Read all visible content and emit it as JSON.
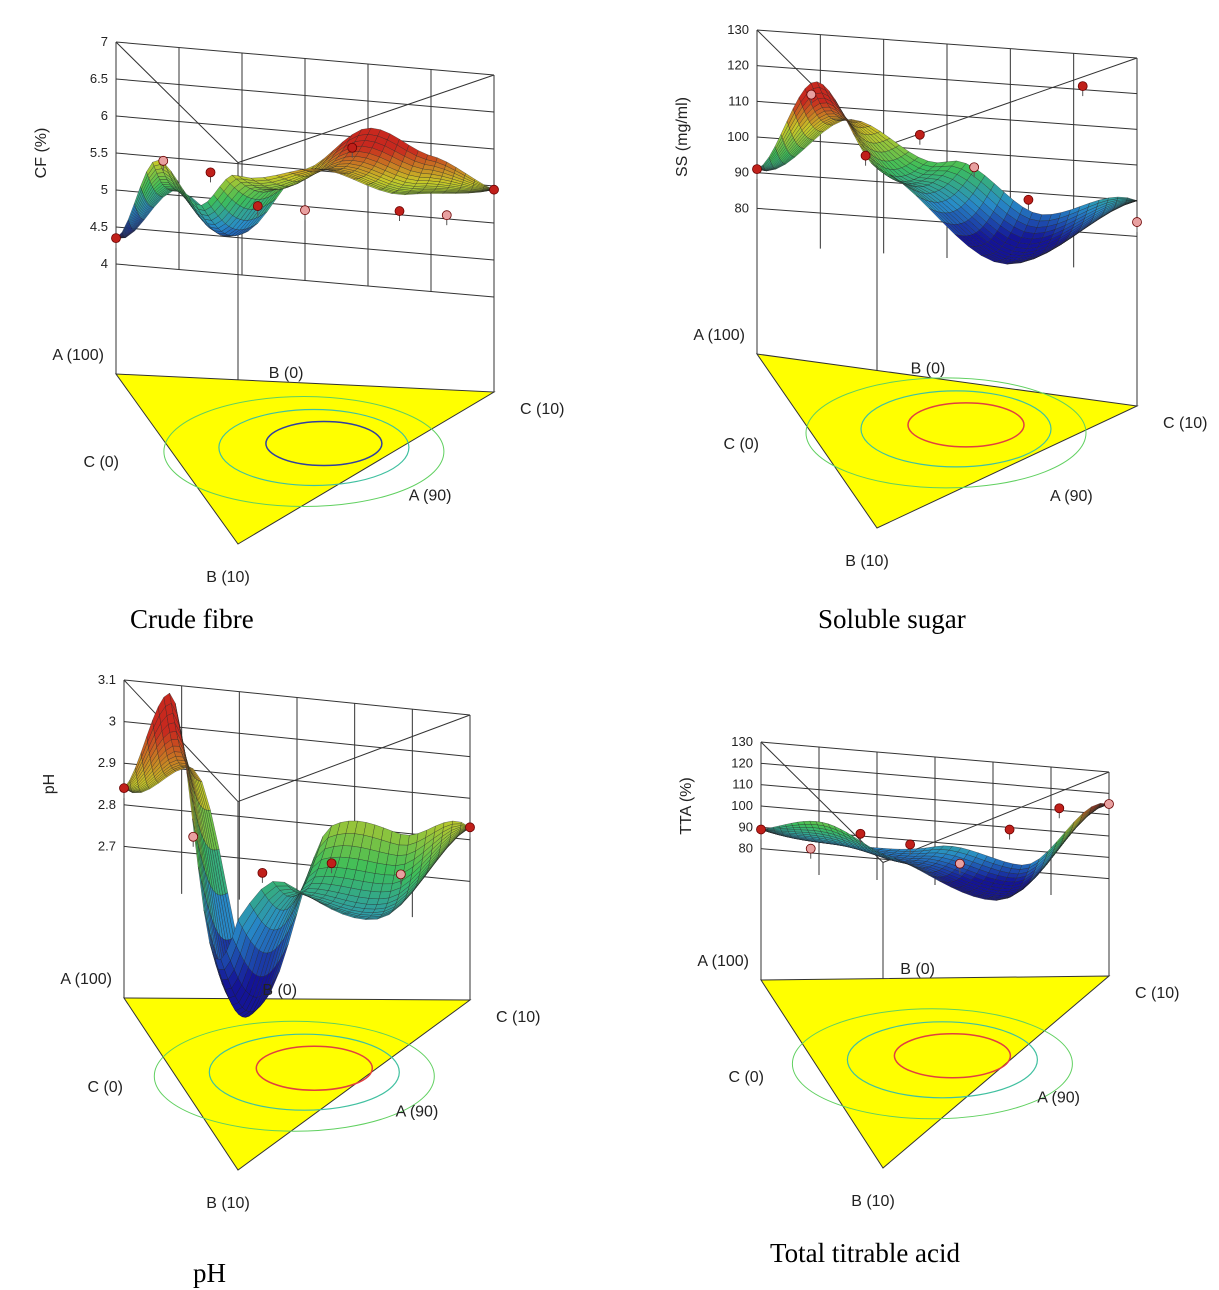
{
  "chart_data": [
    {
      "type": "surface",
      "caption": "Crude fibre",
      "ylabel": "CF (%)",
      "yticks": [
        "4",
        "4.5",
        "5",
        "5.5",
        "6",
        "6.5",
        "7"
      ],
      "ylim": [
        4,
        7
      ],
      "vertex_labels": {
        "a_top": "A (100)",
        "b_top": "B (0)",
        "c_right": "C (10)",
        "c_left": "C (0)",
        "a_bottom": "A (90)",
        "b_bottom": "B (10)"
      },
      "surface_profile": [
        4.35,
        5.3,
        4.8,
        5.5,
        5.9,
        5.6,
        5.45
      ],
      "design_points": [
        4.35,
        5.45,
        5.35,
        4.95,
        4.95,
        5.85,
        5.05,
        5.05,
        5.45
      ]
    },
    {
      "type": "surface",
      "caption": "Soluble sugar",
      "ylabel": "SS (mg/ml)",
      "yticks": [
        "80",
        "90",
        "100",
        "110",
        "120",
        "130"
      ],
      "ylim": [
        70,
        130
      ],
      "vertex_labels": {
        "a_top": "A (100)",
        "b_top": "B (0)",
        "c_right": "C (10)",
        "c_left": "C (0)",
        "a_bottom": "A (90)",
        "b_bottom": "B (10)"
      },
      "surface_profile": [
        91,
        113,
        97,
        78,
        90
      ],
      "design_points": [
        91,
        113,
        97,
        104,
        96,
        88,
        121,
        84
      ]
    },
    {
      "type": "surface",
      "caption": "pH",
      "ylabel": "pH",
      "yticks": [
        "2.7",
        "2.8",
        "2.9",
        "3",
        "3.1"
      ],
      "ylim": [
        2.6,
        3.1
      ],
      "vertex_labels": {
        "a_top": "A (100)",
        "b_top": "B (0)",
        "c_right": "C (10)",
        "c_left": "C (0)",
        "a_bottom": "A (90)",
        "b_bottom": "B (10)"
      },
      "surface_profile": [
        2.84,
        3.0,
        2.42,
        2.74,
        2.7,
        2.83
      ],
      "design_points": [
        2.84,
        2.74,
        2.67,
        2.71,
        2.7,
        2.83
      ]
    },
    {
      "type": "surface",
      "caption": "Total titrable acid",
      "ylabel": "TTA (%)",
      "yticks": [
        "80",
        "90",
        "100",
        "110",
        "120",
        "130"
      ],
      "ylim": [
        70,
        130
      ],
      "vertex_labels": {
        "a_top": "A (100)",
        "b_top": "B (0)",
        "c_right": "C (10)",
        "c_left": "C (0)",
        "a_bottom": "A (90)",
        "b_bottom": "B (10)"
      },
      "surface_profile": [
        89,
        92,
        88,
        76,
        115
      ],
      "design_points": [
        89,
        82,
        91,
        88,
        81,
        99,
        111,
        115
      ]
    }
  ]
}
